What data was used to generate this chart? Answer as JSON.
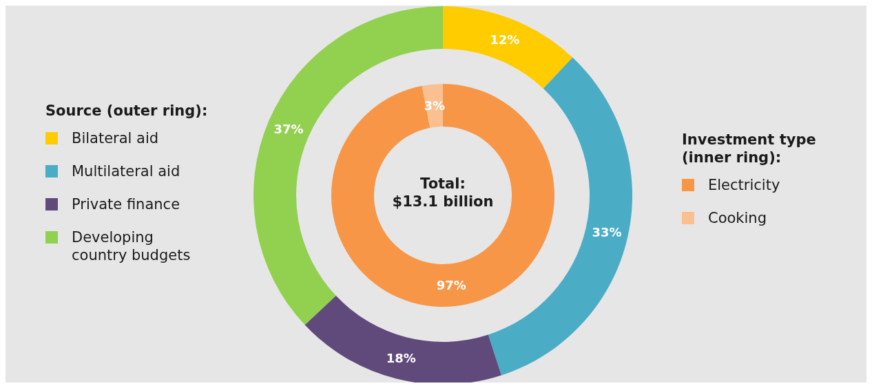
{
  "chart_data": [
    {
      "type": "donut",
      "legend_title": "Source (outer ring):",
      "legend": "left",
      "categories": [
        "Bilateral aid",
        "Multilateral aid",
        "Private finance",
        "Developing country budgets"
      ],
      "values": [
        12,
        33,
        18,
        37
      ],
      "colors": [
        "#ffcc00",
        "#4bacc6",
        "#604a7b",
        "#92d050"
      ],
      "value_labels": [
        "12%",
        "33%",
        "18%",
        "37%"
      ]
    },
    {
      "type": "donut",
      "legend_title": "Investment type (inner ring):",
      "legend": "right",
      "categories": [
        "Electricity",
        "Cooking"
      ],
      "values": [
        97,
        3
      ],
      "colors": [
        "#f79646",
        "#fac090"
      ],
      "value_labels": [
        "97%",
        "3%"
      ],
      "annotations": [
        "Total:\n$13.1 billion"
      ]
    }
  ]
}
